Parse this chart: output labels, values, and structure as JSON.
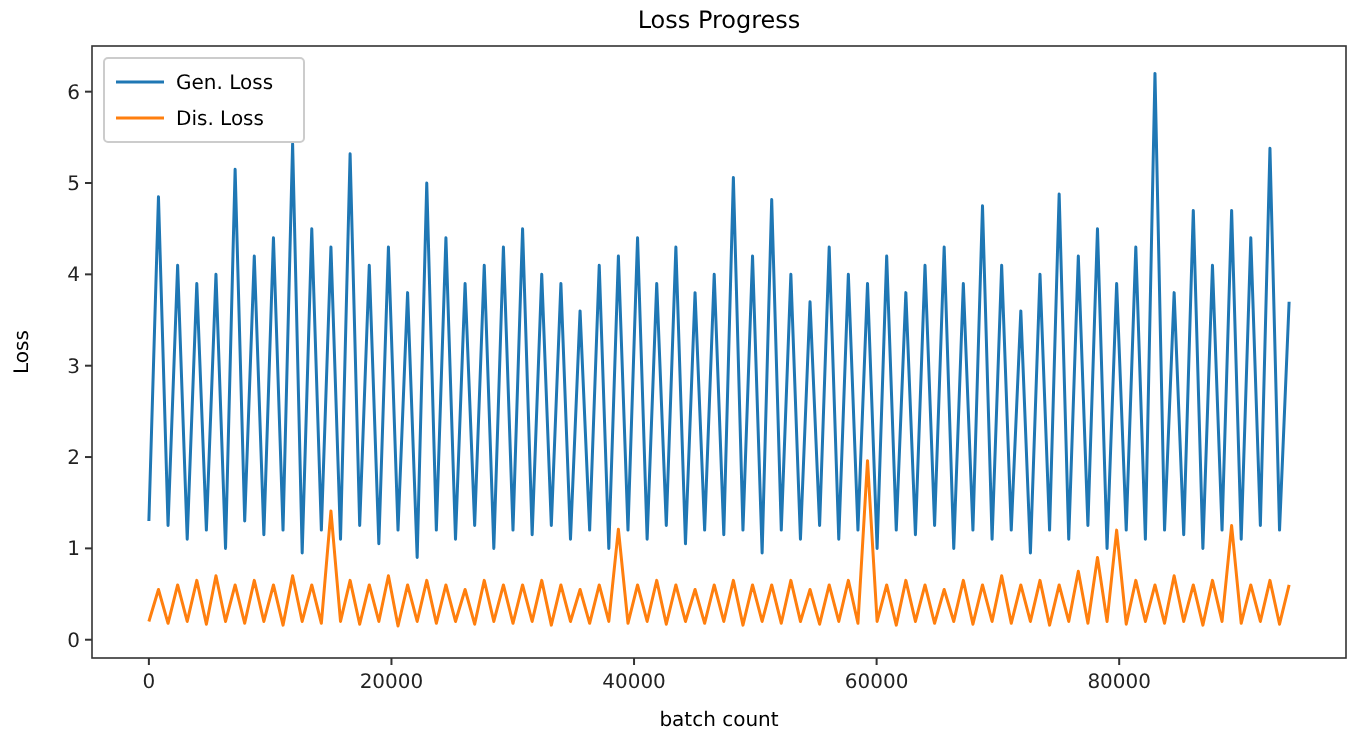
{
  "chart_data": {
    "type": "line",
    "title": "Loss Progress",
    "xlabel": "batch count",
    "ylabel": "Loss",
    "legend": "top left",
    "xlim": [
      -4690,
      98700
    ],
    "ylim": [
      -0.2,
      6.5
    ],
    "xticks": [
      0,
      20000,
      40000,
      60000,
      80000
    ],
    "yticks": [
      0,
      1,
      2,
      3,
      4,
      5,
      6
    ],
    "x": [
      0,
      790,
      1580,
      2370,
      3160,
      3950,
      4740,
      5530,
      6320,
      7110,
      7900,
      8690,
      9480,
      10270,
      11060,
      11850,
      12640,
      13430,
      14220,
      15010,
      15800,
      16590,
      17380,
      18170,
      18960,
      19750,
      20540,
      21330,
      22120,
      22910,
      23700,
      24490,
      25280,
      26070,
      26860,
      27650,
      28440,
      29230,
      30020,
      30810,
      31600,
      32390,
      33180,
      33970,
      34760,
      35550,
      36340,
      37130,
      37920,
      38710,
      39500,
      40290,
      41080,
      41870,
      42660,
      43450,
      44240,
      45030,
      45820,
      46610,
      47400,
      48190,
      48980,
      49770,
      50560,
      51350,
      52140,
      52930,
      53720,
      54510,
      55300,
      56090,
      56880,
      57670,
      58460,
      59250,
      60040,
      60830,
      61620,
      62410,
      63200,
      63990,
      64780,
      65570,
      66360,
      67150,
      67940,
      68730,
      69520,
      70310,
      71100,
      71890,
      72680,
      73470,
      74260,
      75050,
      75840,
      76630,
      77420,
      78210,
      79000,
      79790,
      80580,
      81370,
      82160,
      82950,
      83740,
      84530,
      85320,
      86110,
      86900,
      87690,
      88480,
      89270,
      90060,
      90850,
      91640,
      92430,
      93220,
      94010
    ],
    "series": [
      {
        "name": "Gen. Loss",
        "color": "#1f77b4",
        "values": [
          1.3,
          4.85,
          1.25,
          4.1,
          1.1,
          3.9,
          1.2,
          4.0,
          1.0,
          5.15,
          1.3,
          4.2,
          1.15,
          4.4,
          1.2,
          5.43,
          0.95,
          4.5,
          1.2,
          4.3,
          1.1,
          5.32,
          1.25,
          4.1,
          1.05,
          4.3,
          1.2,
          3.8,
          0.9,
          5.0,
          1.2,
          4.4,
          1.1,
          3.9,
          1.25,
          4.1,
          1.0,
          4.3,
          1.2,
          4.5,
          1.15,
          4.0,
          1.25,
          3.9,
          1.1,
          3.6,
          1.2,
          4.1,
          1.0,
          4.2,
          1.2,
          4.4,
          1.1,
          3.9,
          1.25,
          4.3,
          1.05,
          3.8,
          1.2,
          4.0,
          1.15,
          5.06,
          1.2,
          4.2,
          0.95,
          4.82,
          1.2,
          4.0,
          1.1,
          3.7,
          1.25,
          4.3,
          1.1,
          4.0,
          1.2,
          3.9,
          1.0,
          4.2,
          1.2,
          3.8,
          1.15,
          4.1,
          1.25,
          4.3,
          1.0,
          3.9,
          1.2,
          4.75,
          1.1,
          4.1,
          1.2,
          3.6,
          0.95,
          4.0,
          1.2,
          4.88,
          1.1,
          4.2,
          1.25,
          4.5,
          1.0,
          3.9,
          1.2,
          4.3,
          1.1,
          6.2,
          1.2,
          3.8,
          1.15,
          4.7,
          1.0,
          4.1,
          1.2,
          4.7,
          1.1,
          4.4,
          1.25,
          5.38,
          1.2,
          3.7
        ]
      },
      {
        "name": "Dis. Loss",
        "color": "#ff7f0e",
        "values": [
          0.2,
          0.55,
          0.18,
          0.6,
          0.2,
          0.65,
          0.17,
          0.7,
          0.2,
          0.6,
          0.18,
          0.65,
          0.2,
          0.6,
          0.16,
          0.7,
          0.2,
          0.6,
          0.18,
          1.41,
          0.2,
          0.65,
          0.17,
          0.6,
          0.2,
          0.7,
          0.15,
          0.6,
          0.2,
          0.65,
          0.18,
          0.6,
          0.2,
          0.55,
          0.17,
          0.65,
          0.2,
          0.6,
          0.18,
          0.6,
          0.2,
          0.65,
          0.16,
          0.6,
          0.2,
          0.55,
          0.18,
          0.6,
          0.2,
          1.21,
          0.18,
          0.6,
          0.2,
          0.65,
          0.17,
          0.6,
          0.2,
          0.55,
          0.18,
          0.6,
          0.2,
          0.65,
          0.16,
          0.6,
          0.2,
          0.6,
          0.18,
          0.65,
          0.2,
          0.55,
          0.17,
          0.6,
          0.2,
          0.65,
          0.18,
          1.96,
          0.2,
          0.6,
          0.16,
          0.65,
          0.2,
          0.6,
          0.18,
          0.55,
          0.2,
          0.65,
          0.17,
          0.6,
          0.2,
          0.7,
          0.18,
          0.6,
          0.2,
          0.65,
          0.16,
          0.6,
          0.2,
          0.75,
          0.18,
          0.9,
          0.2,
          1.2,
          0.17,
          0.65,
          0.2,
          0.6,
          0.18,
          0.7,
          0.2,
          0.6,
          0.16,
          0.65,
          0.2,
          1.25,
          0.18,
          0.6,
          0.2,
          0.65,
          0.17,
          0.6
        ]
      }
    ]
  }
}
